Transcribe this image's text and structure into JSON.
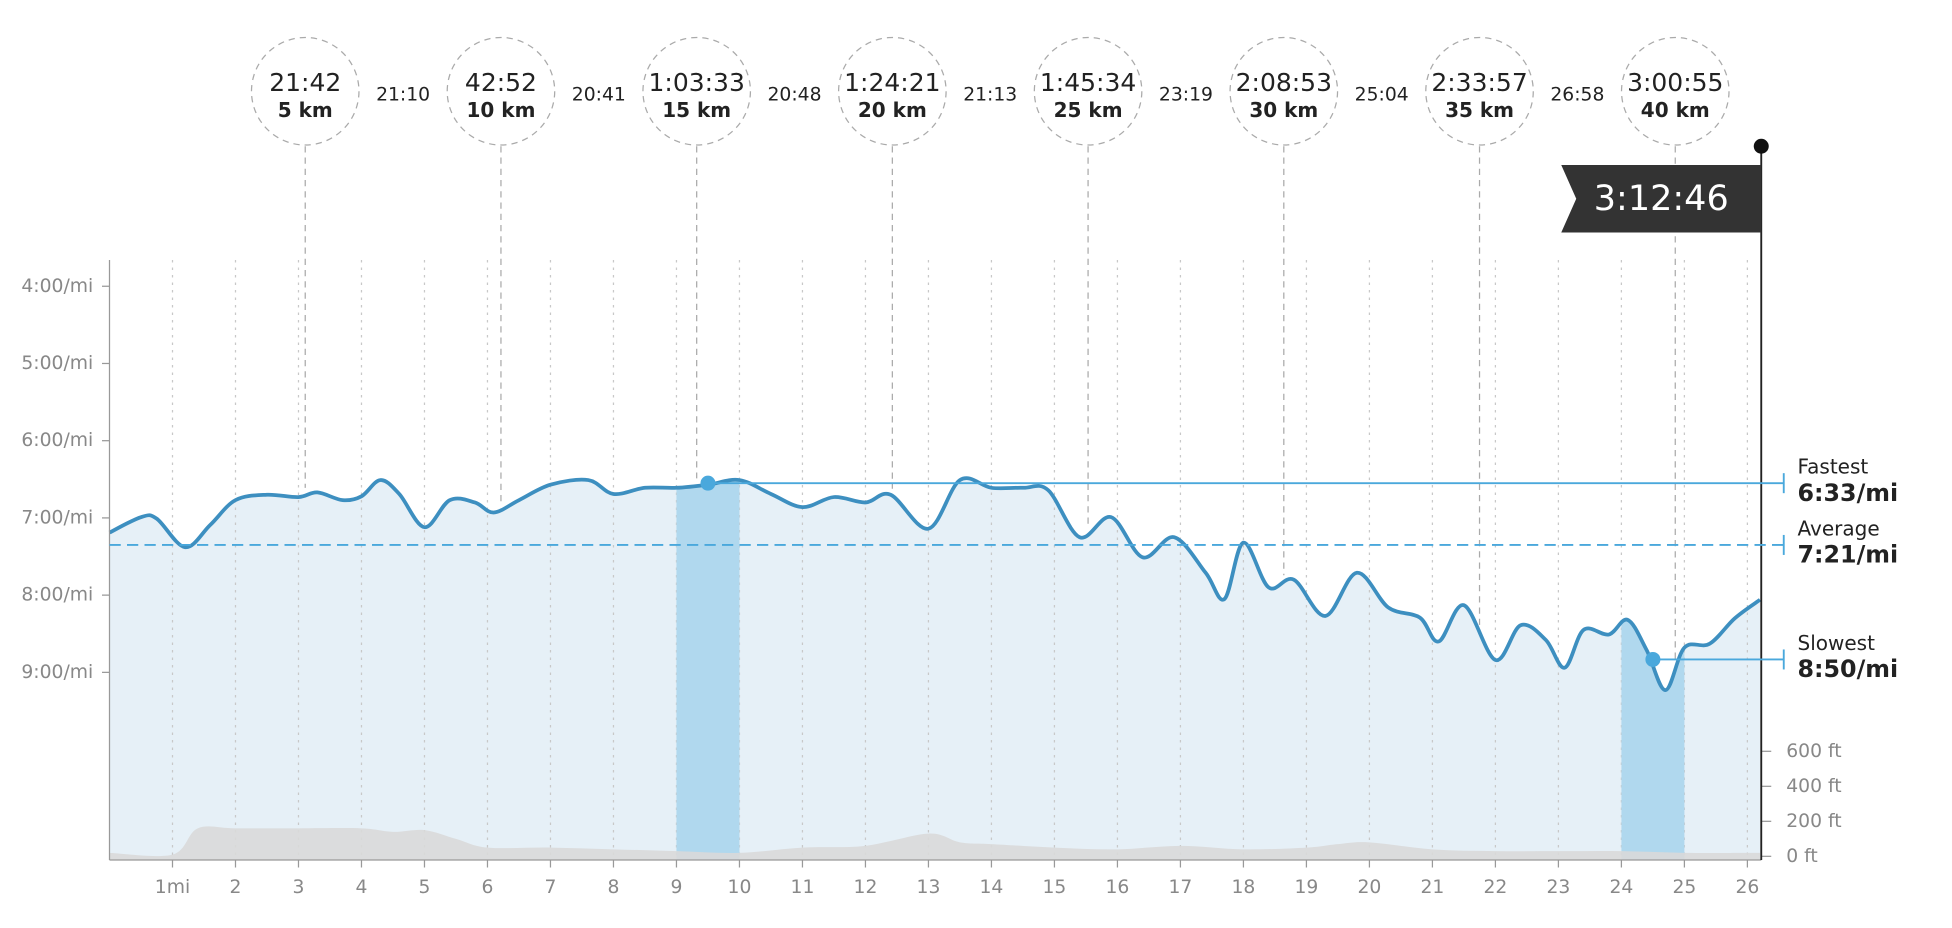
{
  "chart_data": {
    "type": "line",
    "x": [
      0,
      0.5,
      0.75,
      1.2,
      1.6,
      2,
      2.5,
      3,
      3.3,
      3.7,
      4,
      4.3,
      4.6,
      5,
      5.4,
      5.8,
      6.1,
      6.5,
      7,
      7.6,
      8,
      8.5,
      9,
      9.5,
      10,
      10.5,
      11,
      11.5,
      12,
      12.4,
      13,
      13.5,
      14,
      14.5,
      14.9,
      15.4,
      15.9,
      16.4,
      16.9,
      17.4,
      17.7,
      18,
      18.4,
      18.8,
      19.3,
      19.8,
      20.3,
      20.8,
      21.1,
      21.5,
      22,
      22.4,
      22.8,
      23.1,
      23.4,
      23.8,
      24.1,
      24.4,
      24.7,
      25,
      25.4,
      25.8,
      26.2
    ],
    "values": [
      7.19,
      6.99,
      7.01,
      7.38,
      7.09,
      6.77,
      6.7,
      6.73,
      6.67,
      6.77,
      6.72,
      6.51,
      6.69,
      7.12,
      6.77,
      6.8,
      6.93,
      6.77,
      6.57,
      6.51,
      6.69,
      6.61,
      6.61,
      6.57,
      6.51,
      6.69,
      6.86,
      6.73,
      6.8,
      6.7,
      7.14,
      6.51,
      6.61,
      6.61,
      6.64,
      7.25,
      6.99,
      7.51,
      7.25,
      7.71,
      8.05,
      7.32,
      7.9,
      7.8,
      8.27,
      7.71,
      8.16,
      8.29,
      8.6,
      8.13,
      8.84,
      8.39,
      8.58,
      8.94,
      8.45,
      8.51,
      8.32,
      8.71,
      9.23,
      8.68,
      8.63,
      8.3,
      8.06
    ],
    "color": "#3d8fc0",
    "xlim": [
      0,
      26.22
    ],
    "ylim": [
      11.43,
      3.66
    ],
    "yticks": [
      {
        "value": 4,
        "label": "4:00/mi"
      },
      {
        "value": 5,
        "label": "5:00/mi"
      },
      {
        "value": 6,
        "label": "6:00/mi"
      },
      {
        "value": 7,
        "label": "7:00/mi"
      },
      {
        "value": 8,
        "label": "8:00/mi"
      },
      {
        "value": 9,
        "label": "9:00/mi"
      }
    ],
    "xticks": [
      {
        "value": 1,
        "label": "1mi"
      },
      2,
      3,
      4,
      5,
      6,
      7,
      8,
      9,
      10,
      11,
      12,
      13,
      14,
      15,
      16,
      17,
      18,
      19,
      20,
      21,
      22,
      23,
      24,
      25,
      26
    ],
    "y2lim": [
      -21,
      3407
    ],
    "y2ticks": [
      {
        "value": 0,
        "label": "0 ft"
      },
      {
        "value": 200,
        "label": "200 ft"
      },
      {
        "value": 400,
        "label": "400 ft"
      },
      {
        "value": 600,
        "label": "600 ft"
      }
    ],
    "elevation": {
      "axis": "y2",
      "color": "#d9d9d9",
      "x": [
        0,
        1,
        1.4,
        2,
        3,
        4,
        4.5,
        5,
        5.5,
        6,
        7,
        8,
        9,
        10,
        11,
        12,
        13,
        13.5,
        14,
        15,
        16,
        17,
        18,
        19,
        19.5,
        20,
        21,
        22,
        23,
        24,
        25,
        26,
        26.2
      ],
      "values": [
        20,
        10,
        160,
        160,
        160,
        160,
        140,
        150,
        100,
        50,
        50,
        40,
        30,
        20,
        50,
        60,
        130,
        80,
        70,
        50,
        40,
        60,
        40,
        50,
        70,
        80,
        40,
        30,
        30,
        30,
        20,
        20,
        20
      ]
    },
    "bands": [
      [
        9,
        10
      ],
      [
        24,
        25
      ]
    ],
    "splits": {
      "x": [
        3.107,
        6.214,
        9.321,
        12.427,
        15.534,
        18.641,
        21.748,
        24.855
      ],
      "times": [
        "21:42",
        "42:52",
        "1:03:33",
        "1:24:21",
        "1:45:34",
        "2:08:53",
        "2:33:57",
        "3:00:55"
      ],
      "labels": [
        "5 km",
        "10 km",
        "15 km",
        "20 km",
        "25 km",
        "30 km",
        "35 km",
        "40 km"
      ],
      "intervals": [
        "21:10",
        "20:41",
        "20:48",
        "21:13",
        "23:19",
        "25:04",
        "26:58"
      ]
    },
    "finish": {
      "x": 26.22,
      "time": "3:12:46"
    },
    "markers": {
      "labels": [
        "Fastest",
        "Average",
        "Slowest"
      ],
      "values": [
        6.55,
        7.35,
        8.833
      ],
      "value_labels": [
        "6:33/mi",
        "7:21/mi",
        "8:50/mi"
      ],
      "dot_x": [
        9.5,
        null,
        24.5
      ],
      "color": "#4aa8dc"
    }
  }
}
